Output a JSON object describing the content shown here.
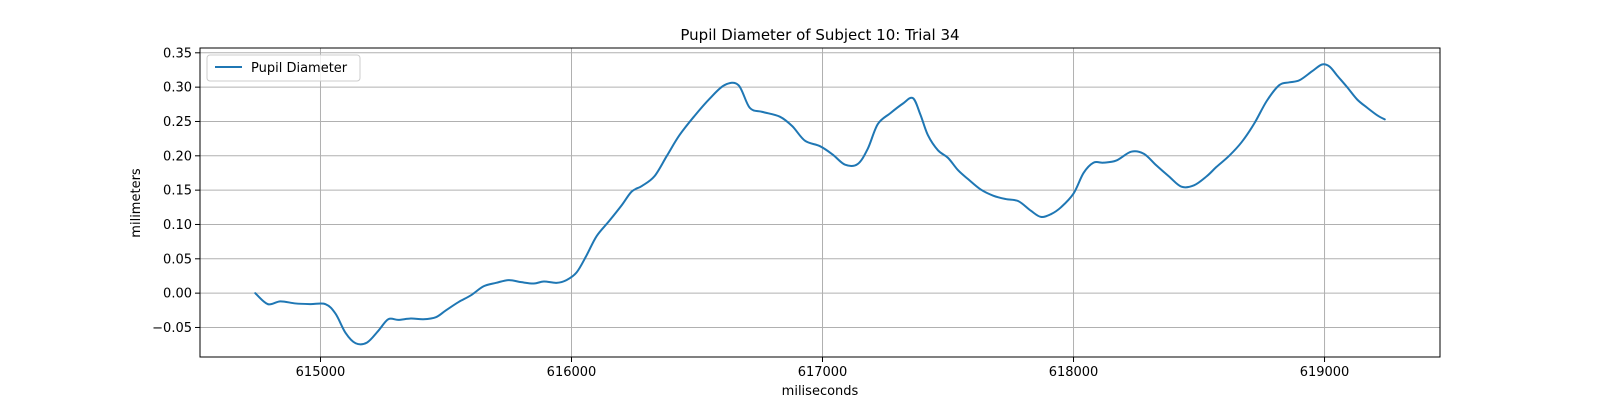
{
  "chart_data": {
    "type": "line",
    "title": "Pupil Diameter of Subject 10: Trial 34",
    "xlabel": "miliseconds",
    "ylabel": "milimeters",
    "xlim": [
      614520,
      619460
    ],
    "ylim": [
      -0.093,
      0.357
    ],
    "x_ticks": [
      615000,
      616000,
      617000,
      618000,
      619000
    ],
    "y_ticks": [
      -0.05,
      0.0,
      0.05,
      0.1,
      0.15,
      0.2,
      0.25,
      0.3,
      0.35
    ],
    "x_tick_labels": [
      "615000",
      "616000",
      "617000",
      "618000",
      "619000"
    ],
    "y_tick_labels": [
      "−0.05",
      "0.00",
      "0.05",
      "0.10",
      "0.15",
      "0.20",
      "0.25",
      "0.30",
      "0.35"
    ],
    "grid": true,
    "legend_position": "top-left",
    "series": [
      {
        "name": "Pupil Diameter",
        "color": "#1f77b4",
        "x": [
          614740,
          614790,
          614840,
          614900,
          614960,
          615020,
          615060,
          615100,
          615140,
          615185,
          615230,
          615270,
          615310,
          615360,
          615410,
          615460,
          615500,
          615550,
          615600,
          615650,
          615700,
          615750,
          615800,
          615850,
          615890,
          615940,
          615980,
          616020,
          616060,
          616100,
          616150,
          616200,
          616240,
          616280,
          616330,
          616380,
          616430,
          616490,
          616550,
          616610,
          616665,
          616710,
          616760,
          616830,
          616880,
          616930,
          616990,
          617040,
          617090,
          617140,
          617180,
          617220,
          617270,
          617320,
          617360,
          617390,
          617420,
          617460,
          617500,
          617540,
          617580,
          617630,
          617680,
          617730,
          617780,
          617830,
          617870,
          617910,
          617950,
          618000,
          618040,
          618080,
          618120,
          618170,
          618230,
          618280,
          618330,
          618380,
          618430,
          618480,
          618530,
          618570,
          618620,
          618670,
          618720,
          618770,
          618820,
          618860,
          618900,
          618950,
          618990,
          619020,
          619050,
          619090,
          619130,
          619170,
          619210,
          619240
        ],
        "values": [
          0.0,
          -0.016,
          -0.012,
          -0.015,
          -0.016,
          -0.016,
          -0.03,
          -0.058,
          -0.073,
          -0.072,
          -0.055,
          -0.038,
          -0.039,
          -0.037,
          -0.038,
          -0.035,
          -0.025,
          -0.013,
          -0.003,
          0.01,
          0.015,
          0.019,
          0.016,
          0.014,
          0.017,
          0.015,
          0.019,
          0.03,
          0.055,
          0.083,
          0.105,
          0.128,
          0.148,
          0.156,
          0.17,
          0.2,
          0.23,
          0.258,
          0.283,
          0.303,
          0.303,
          0.27,
          0.264,
          0.257,
          0.243,
          0.222,
          0.214,
          0.202,
          0.187,
          0.188,
          0.21,
          0.246,
          0.262,
          0.276,
          0.284,
          0.26,
          0.23,
          0.208,
          0.197,
          0.179,
          0.166,
          0.151,
          0.142,
          0.137,
          0.134,
          0.12,
          0.111,
          0.115,
          0.125,
          0.145,
          0.175,
          0.19,
          0.19,
          0.193,
          0.206,
          0.203,
          0.186,
          0.17,
          0.155,
          0.157,
          0.17,
          0.184,
          0.2,
          0.22,
          0.247,
          0.28,
          0.303,
          0.307,
          0.31,
          0.323,
          0.333,
          0.33,
          0.317,
          0.3,
          0.282,
          0.27,
          0.259,
          0.253
        ]
      }
    ]
  }
}
